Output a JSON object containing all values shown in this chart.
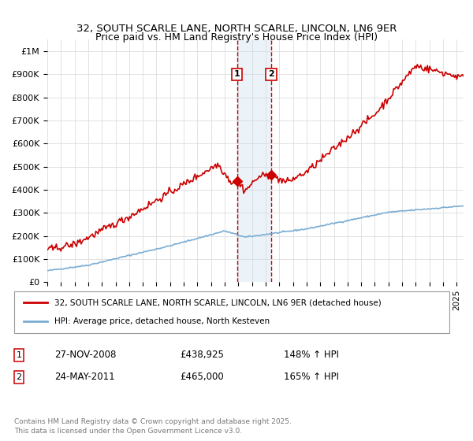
{
  "title1": "32, SOUTH SCARLE LANE, NORTH SCARLE, LINCOLN, LN6 9ER",
  "title2": "Price paid vs. HM Land Registry's House Price Index (HPI)",
  "ylim": [
    0,
    1050000
  ],
  "yticks": [
    0,
    100000,
    200000,
    300000,
    400000,
    500000,
    600000,
    700000,
    800000,
    900000,
    1000000
  ],
  "ytick_labels": [
    "£0",
    "£100K",
    "£200K",
    "£300K",
    "£400K",
    "£500K",
    "£600K",
    "£700K",
    "£800K",
    "£900K",
    "£1M"
  ],
  "red_color": "#cc0000",
  "blue_color": "#7aadd4",
  "marker1_date": 2008.9,
  "marker1_value": 438925,
  "marker2_date": 2011.4,
  "marker2_value": 465000,
  "marker1_date_str": "27-NOV-2008",
  "marker1_price_str": "£438,925",
  "marker1_hpi_str": "148% ↑ HPI",
  "marker2_date_str": "24-MAY-2011",
  "marker2_price_str": "£465,000",
  "marker2_hpi_str": "165% ↑ HPI",
  "legend_line1": "32, SOUTH SCARLE LANE, NORTH SCARLE, LINCOLN, LN6 9ER (detached house)",
  "legend_line2": "HPI: Average price, detached house, North Kesteven",
  "footnote": "Contains HM Land Registry data © Crown copyright and database right 2025.\nThis data is licensed under the Open Government Licence v3.0.",
  "background_color": "#ffffff",
  "grid_color": "#dddddd",
  "shade_color": "#c8dff0",
  "xlim_left": 1995,
  "xlim_right": 2025.5
}
